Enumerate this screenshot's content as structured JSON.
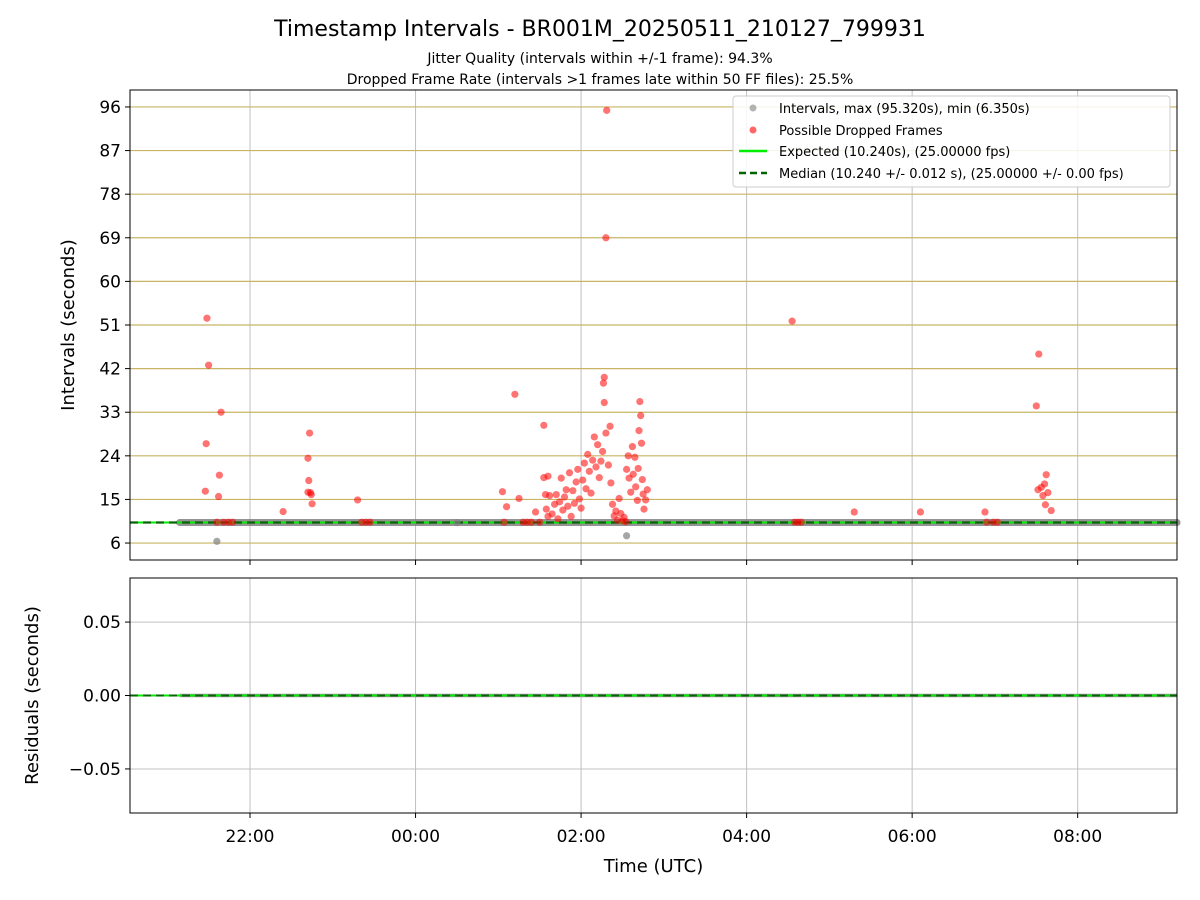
{
  "title": "Timestamp Intervals - BR001M_20250511_210127_799931",
  "subtitle_lines": [
    "Jitter Quality (intervals within +/-1 frame): 94.3%",
    "Dropped Frame Rate (intervals >1 frames late within 50 FF files): 25.5%"
  ],
  "colors": {
    "intervals": "#808080",
    "dropped": "#ff0000",
    "expected": "#00ee00",
    "median": "#006400",
    "hgrid_top": "#c8b464",
    "grid": "#c0c0c0"
  },
  "chart_data": [
    {
      "type": "scatter",
      "ylabel": "Intervals (seconds)",
      "xlim_hours": [
        20.55,
        33.2
      ],
      "ylim": [
        2.5,
        99.5
      ],
      "yticks": [
        "6",
        "15",
        "24",
        "33",
        "42",
        "51",
        "60",
        "69",
        "78",
        "87",
        "96"
      ],
      "grid": true,
      "legend_placement": "top-right",
      "legend": [
        "Intervals, max (95.320s), min (6.350s)",
        "Possible Dropped Frames",
        "Expected (10.240s), (25.00000 fps)",
        "Median (10.240 +/- 0.012 s), (25.00000 +/- 0.00 fps)"
      ],
      "expected_interval": 10.24,
      "median_interval": 10.24,
      "intervals_range_hours": [
        21.15,
        33.2
      ],
      "outlier_intervals": [
        {
          "x": 21.6,
          "y": 6.35
        },
        {
          "x": 24.5,
          "y": 10.2
        },
        {
          "x": 26.55,
          "y": 7.5
        }
      ],
      "dropped_points": [
        {
          "x": 21.48,
          "y": 52.4
        },
        {
          "x": 21.5,
          "y": 42.7
        },
        {
          "x": 21.47,
          "y": 26.5
        },
        {
          "x": 21.46,
          "y": 16.7
        },
        {
          "x": 21.65,
          "y": 33.0
        },
        {
          "x": 21.63,
          "y": 20.0
        },
        {
          "x": 21.62,
          "y": 15.6
        },
        {
          "x": 21.6,
          "y": 10.3
        },
        {
          "x": 21.68,
          "y": 10.3
        },
        {
          "x": 21.74,
          "y": 10.3
        },
        {
          "x": 21.79,
          "y": 10.3
        },
        {
          "x": 22.4,
          "y": 12.5
        },
        {
          "x": 22.72,
          "y": 28.7
        },
        {
          "x": 22.7,
          "y": 23.5
        },
        {
          "x": 22.71,
          "y": 18.9
        },
        {
          "x": 22.7,
          "y": 16.5
        },
        {
          "x": 22.74,
          "y": 16.0
        },
        {
          "x": 22.75,
          "y": 14.1
        },
        {
          "x": 22.73,
          "y": 16.4
        },
        {
          "x": 23.3,
          "y": 14.9
        },
        {
          "x": 23.35,
          "y": 10.3
        },
        {
          "x": 23.45,
          "y": 10.3
        },
        {
          "x": 23.4,
          "y": 10.3
        },
        {
          "x": 25.05,
          "y": 16.6
        },
        {
          "x": 25.1,
          "y": 13.5
        },
        {
          "x": 25.07,
          "y": 10.3
        },
        {
          "x": 25.2,
          "y": 36.7
        },
        {
          "x": 25.25,
          "y": 15.2
        },
        {
          "x": 25.3,
          "y": 10.3
        },
        {
          "x": 25.35,
          "y": 10.3
        },
        {
          "x": 25.4,
          "y": 10.3
        },
        {
          "x": 25.45,
          "y": 12.4
        },
        {
          "x": 25.5,
          "y": 10.3
        },
        {
          "x": 25.55,
          "y": 30.3
        },
        {
          "x": 25.55,
          "y": 19.5
        },
        {
          "x": 25.57,
          "y": 16.0
        },
        {
          "x": 25.58,
          "y": 13.0
        },
        {
          "x": 25.6,
          "y": 11.5
        },
        {
          "x": 25.6,
          "y": 19.8
        },
        {
          "x": 25.62,
          "y": 15.8
        },
        {
          "x": 25.65,
          "y": 12.0
        },
        {
          "x": 25.68,
          "y": 14.0
        },
        {
          "x": 25.7,
          "y": 16.0
        },
        {
          "x": 25.72,
          "y": 11.0
        },
        {
          "x": 25.74,
          "y": 14.5
        },
        {
          "x": 25.76,
          "y": 19.4
        },
        {
          "x": 25.78,
          "y": 12.8
        },
        {
          "x": 25.8,
          "y": 15.5
        },
        {
          "x": 25.82,
          "y": 17.0
        },
        {
          "x": 25.84,
          "y": 13.6
        },
        {
          "x": 25.86,
          "y": 20.5
        },
        {
          "x": 25.88,
          "y": 11.5
        },
        {
          "x": 25.9,
          "y": 16.8
        },
        {
          "x": 25.92,
          "y": 14.2
        },
        {
          "x": 25.94,
          "y": 18.6
        },
        {
          "x": 25.96,
          "y": 21.2
        },
        {
          "x": 25.98,
          "y": 15.1
        },
        {
          "x": 26.0,
          "y": 13.2
        },
        {
          "x": 26.02,
          "y": 19.0
        },
        {
          "x": 26.04,
          "y": 22.5
        },
        {
          "x": 26.06,
          "y": 17.2
        },
        {
          "x": 26.08,
          "y": 24.3
        },
        {
          "x": 26.1,
          "y": 20.8
        },
        {
          "x": 26.12,
          "y": 16.3
        },
        {
          "x": 26.14,
          "y": 23.1
        },
        {
          "x": 26.16,
          "y": 27.9
        },
        {
          "x": 26.18,
          "y": 21.7
        },
        {
          "x": 26.2,
          "y": 26.3
        },
        {
          "x": 26.22,
          "y": 19.5
        },
        {
          "x": 26.24,
          "y": 22.9
        },
        {
          "x": 26.26,
          "y": 24.9
        },
        {
          "x": 26.28,
          "y": 35.0
        },
        {
          "x": 26.27,
          "y": 39.0
        },
        {
          "x": 26.28,
          "y": 40.2
        },
        {
          "x": 26.3,
          "y": 28.7
        },
        {
          "x": 26.31,
          "y": 95.3
        },
        {
          "x": 26.3,
          "y": 69.0
        },
        {
          "x": 26.33,
          "y": 22.1
        },
        {
          "x": 26.35,
          "y": 30.1
        },
        {
          "x": 26.36,
          "y": 18.4
        },
        {
          "x": 26.38,
          "y": 14.0
        },
        {
          "x": 26.4,
          "y": 11.6
        },
        {
          "x": 26.42,
          "y": 12.6
        },
        {
          "x": 26.44,
          "y": 10.7
        },
        {
          "x": 26.46,
          "y": 15.2
        },
        {
          "x": 26.48,
          "y": 12.1
        },
        {
          "x": 26.5,
          "y": 10.6
        },
        {
          "x": 26.52,
          "y": 11.3
        },
        {
          "x": 26.54,
          "y": 10.4
        },
        {
          "x": 26.55,
          "y": 21.2
        },
        {
          "x": 26.57,
          "y": 24.0
        },
        {
          "x": 26.58,
          "y": 19.4
        },
        {
          "x": 26.6,
          "y": 16.5
        },
        {
          "x": 26.62,
          "y": 25.9
        },
        {
          "x": 26.63,
          "y": 20.2
        },
        {
          "x": 26.65,
          "y": 23.7
        },
        {
          "x": 26.66,
          "y": 17.6
        },
        {
          "x": 26.68,
          "y": 14.8
        },
        {
          "x": 26.69,
          "y": 21.4
        },
        {
          "x": 26.7,
          "y": 29.2
        },
        {
          "x": 26.71,
          "y": 35.2
        },
        {
          "x": 26.72,
          "y": 32.3
        },
        {
          "x": 26.73,
          "y": 26.6
        },
        {
          "x": 26.74,
          "y": 19.1
        },
        {
          "x": 26.75,
          "y": 16.1
        },
        {
          "x": 26.76,
          "y": 13.0
        },
        {
          "x": 26.78,
          "y": 14.9
        },
        {
          "x": 26.8,
          "y": 17.0
        },
        {
          "x": 28.55,
          "y": 51.8
        },
        {
          "x": 28.58,
          "y": 10.3
        },
        {
          "x": 28.62,
          "y": 10.3
        },
        {
          "x": 28.66,
          "y": 10.3
        },
        {
          "x": 29.3,
          "y": 12.4
        },
        {
          "x": 30.1,
          "y": 12.4
        },
        {
          "x": 30.88,
          "y": 12.4
        },
        {
          "x": 30.9,
          "y": 10.3
        },
        {
          "x": 30.98,
          "y": 10.3
        },
        {
          "x": 31.03,
          "y": 10.3
        },
        {
          "x": 31.5,
          "y": 34.3
        },
        {
          "x": 31.53,
          "y": 45.0
        },
        {
          "x": 31.52,
          "y": 17.0
        },
        {
          "x": 31.56,
          "y": 17.5
        },
        {
          "x": 31.58,
          "y": 15.8
        },
        {
          "x": 31.6,
          "y": 18.2
        },
        {
          "x": 31.61,
          "y": 13.9
        },
        {
          "x": 31.62,
          "y": 20.1
        },
        {
          "x": 31.64,
          "y": 16.4
        },
        {
          "x": 31.68,
          "y": 12.7
        }
      ]
    },
    {
      "type": "scatter",
      "ylabel": "Residuals (seconds)",
      "xlabel": "Time (UTC)",
      "xlim_hours": [
        20.55,
        33.2
      ],
      "ylim": [
        -0.08,
        0.08
      ],
      "yticks": [
        "0.05",
        "0.00",
        "−0.05"
      ],
      "xticks": [
        "22:00",
        "00:00",
        "02:00",
        "04:00",
        "06:00",
        "08:00"
      ],
      "grid": true,
      "residual_value": 0.0
    }
  ]
}
